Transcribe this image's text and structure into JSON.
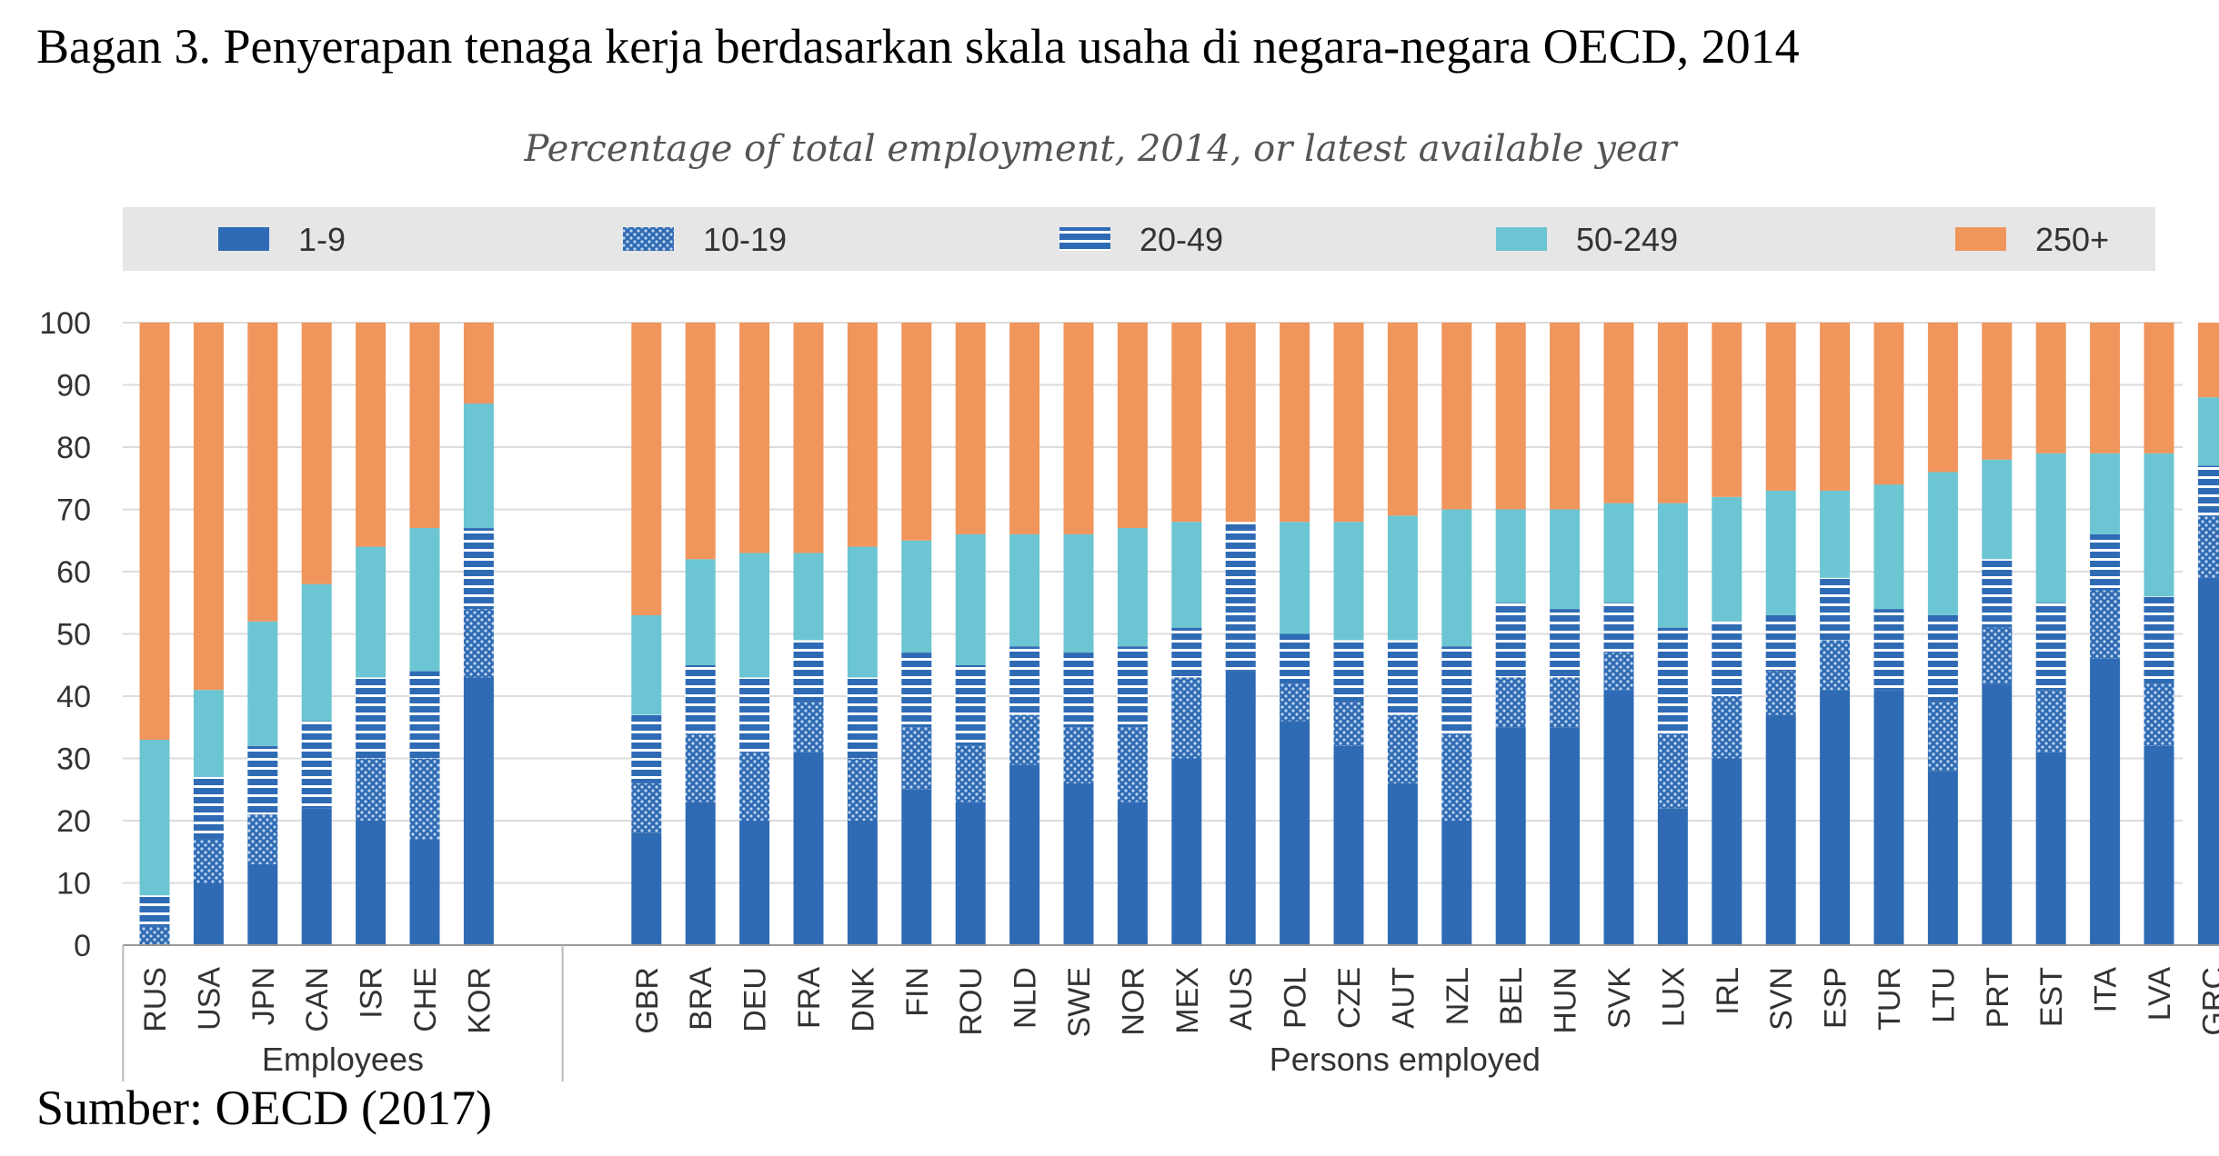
{
  "title": "Bagan 3. Penyerapan tenaga kerja berdasarkan skala usaha di negara-negara OECD, 2014",
  "source": "Sumber: OECD (2017)",
  "colors": {
    "s1_9": "#2f6bb4",
    "s10_19": "#2f6bb4",
    "s20_49": "#2f6bb4",
    "s50_249": "#6cc5d2",
    "s250": "#f0955c",
    "legend_band": "#e6e6e6",
    "grid": "#dcdcdc"
  },
  "chart_data": {
    "type": "bar",
    "stacked": true,
    "title": "Percentage of total employment, 2014, or latest available year",
    "ylim": [
      0,
      100
    ],
    "yticks": [
      0,
      10,
      20,
      30,
      40,
      50,
      60,
      70,
      80,
      90,
      100
    ],
    "legend_position": "top",
    "groups": [
      {
        "label": "Employees",
        "categories": [
          "RUS",
          "USA",
          "JPN",
          "CAN",
          "ISR",
          "CHE",
          "KOR"
        ]
      },
      {
        "label": "Persons employed",
        "categories": [
          "GBR",
          "BRA",
          "DEU",
          "FRA",
          "DNK",
          "FIN",
          "ROU",
          "NLD",
          "SWE",
          "NOR",
          "MEX",
          "AUS",
          "POL",
          "CZE",
          "AUT",
          "NZL",
          "BEL",
          "HUN",
          "SVK",
          "LUX",
          "IRL",
          "SVN",
          "ESP",
          "TUR",
          "LTU",
          "PRT",
          "EST",
          "ITA",
          "LVA",
          "GRC"
        ]
      }
    ],
    "categories": [
      "RUS",
      "USA",
      "JPN",
      "CAN",
      "ISR",
      "CHE",
      "KOR",
      "GBR",
      "BRA",
      "DEU",
      "FRA",
      "DNK",
      "FIN",
      "ROU",
      "NLD",
      "SWE",
      "NOR",
      "MEX",
      "AUS",
      "POL",
      "CZE",
      "AUT",
      "NZL",
      "BEL",
      "HUN",
      "SVK",
      "LUX",
      "IRL",
      "SVN",
      "ESP",
      "TUR",
      "LTU",
      "PRT",
      "EST",
      "ITA",
      "LVA",
      "GRC"
    ],
    "series": [
      {
        "name": "1-9",
        "pattern": "solid",
        "values": [
          0,
          10,
          13,
          22,
          20,
          17,
          43,
          18,
          23,
          20,
          31,
          20,
          25,
          23,
          29,
          26,
          23,
          30,
          44,
          36,
          32,
          26,
          20,
          35,
          35,
          41,
          22,
          30,
          37,
          41,
          41,
          28,
          42,
          31,
          46,
          32,
          59
        ]
      },
      {
        "name": "10-19",
        "pattern": "dots",
        "values": [
          3,
          7,
          8,
          0,
          10,
          13,
          11,
          8,
          11,
          11,
          8,
          10,
          10,
          9,
          8,
          9,
          12,
          13,
          0,
          6,
          7,
          11,
          14,
          8,
          8,
          6,
          12,
          10,
          7,
          8,
          0,
          11,
          9,
          10,
          11,
          10,
          10
        ]
      },
      {
        "name": "20-49",
        "pattern": "stripes",
        "values": [
          5,
          10,
          11,
          14,
          13,
          14,
          13,
          11,
          11,
          12,
          10,
          13,
          12,
          13,
          11,
          12,
          13,
          8,
          24,
          8,
          10,
          12,
          14,
          12,
          11,
          8,
          17,
          12,
          9,
          10,
          13,
          14,
          11,
          14,
          9,
          14,
          8
        ]
      },
      {
        "name": "50-249",
        "pattern": "solid",
        "values": [
          25,
          14,
          20,
          22,
          21,
          23,
          20,
          16,
          17,
          20,
          14,
          21,
          18,
          21,
          18,
          19,
          19,
          17,
          0,
          18,
          19,
          20,
          22,
          15,
          16,
          16,
          20,
          20,
          20,
          14,
          20,
          23,
          16,
          24,
          13,
          23,
          11
        ]
      },
      {
        "name": "250+",
        "pattern": "solid",
        "values": [
          67,
          59,
          48,
          42,
          36,
          33,
          13,
          47,
          38,
          37,
          37,
          36,
          35,
          34,
          34,
          34,
          33,
          32,
          32,
          32,
          32,
          31,
          30,
          30,
          30,
          29,
          29,
          28,
          27,
          27,
          26,
          24,
          22,
          21,
          21,
          21,
          12
        ]
      }
    ]
  }
}
